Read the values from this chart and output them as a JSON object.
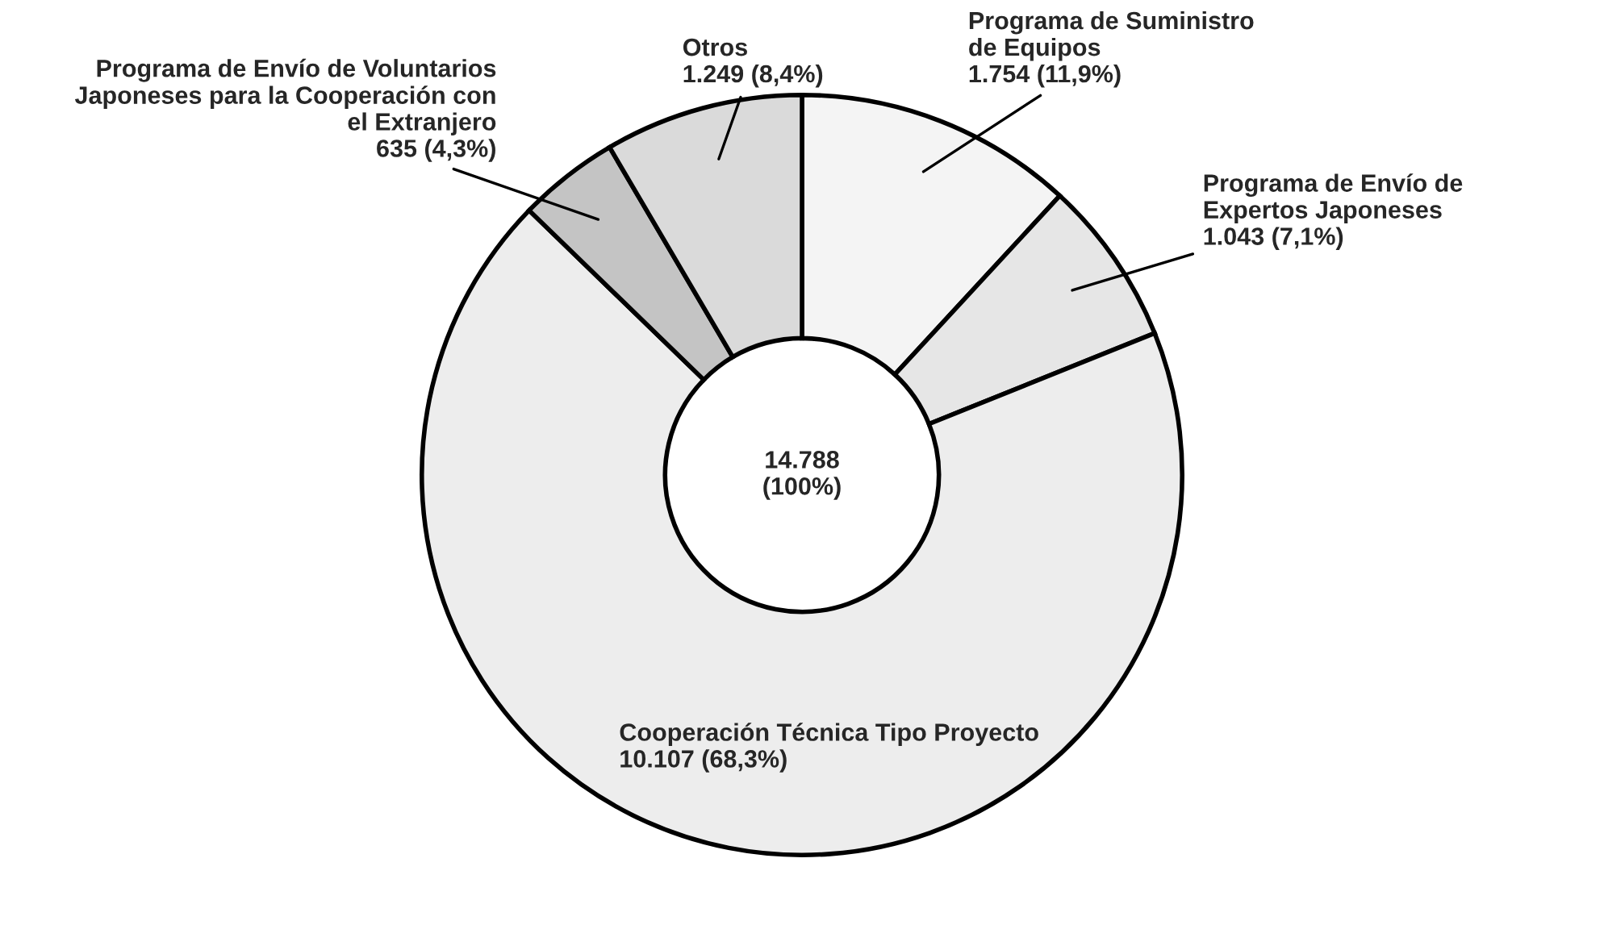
{
  "chart_data": {
    "type": "donut",
    "categories": [
      "Programa de Suministro\nde Equipos",
      "Programa de Envío de\nExpertos Japoneses",
      "Cooperación Técnica Tipo Proyecto",
      "Programa de Envío de Voluntarios\nJaponeses para la Cooperación con\nel Extranjero",
      "Otros"
    ],
    "values": [
      1754,
      1043,
      10107,
      635,
      1249
    ],
    "value_labels": [
      "1.754 (11,9%)",
      "1.043 (7,1%)",
      "10.107 (68,3%)",
      "635 (4,3%)",
      "1.249 (8,4%)"
    ],
    "colors": [
      "#f4f4f4",
      "#e6e6e6",
      "#ededed",
      "#c4c4c4",
      "#dadada"
    ],
    "annotations": [
      "14.788\n(100%)"
    ]
  }
}
